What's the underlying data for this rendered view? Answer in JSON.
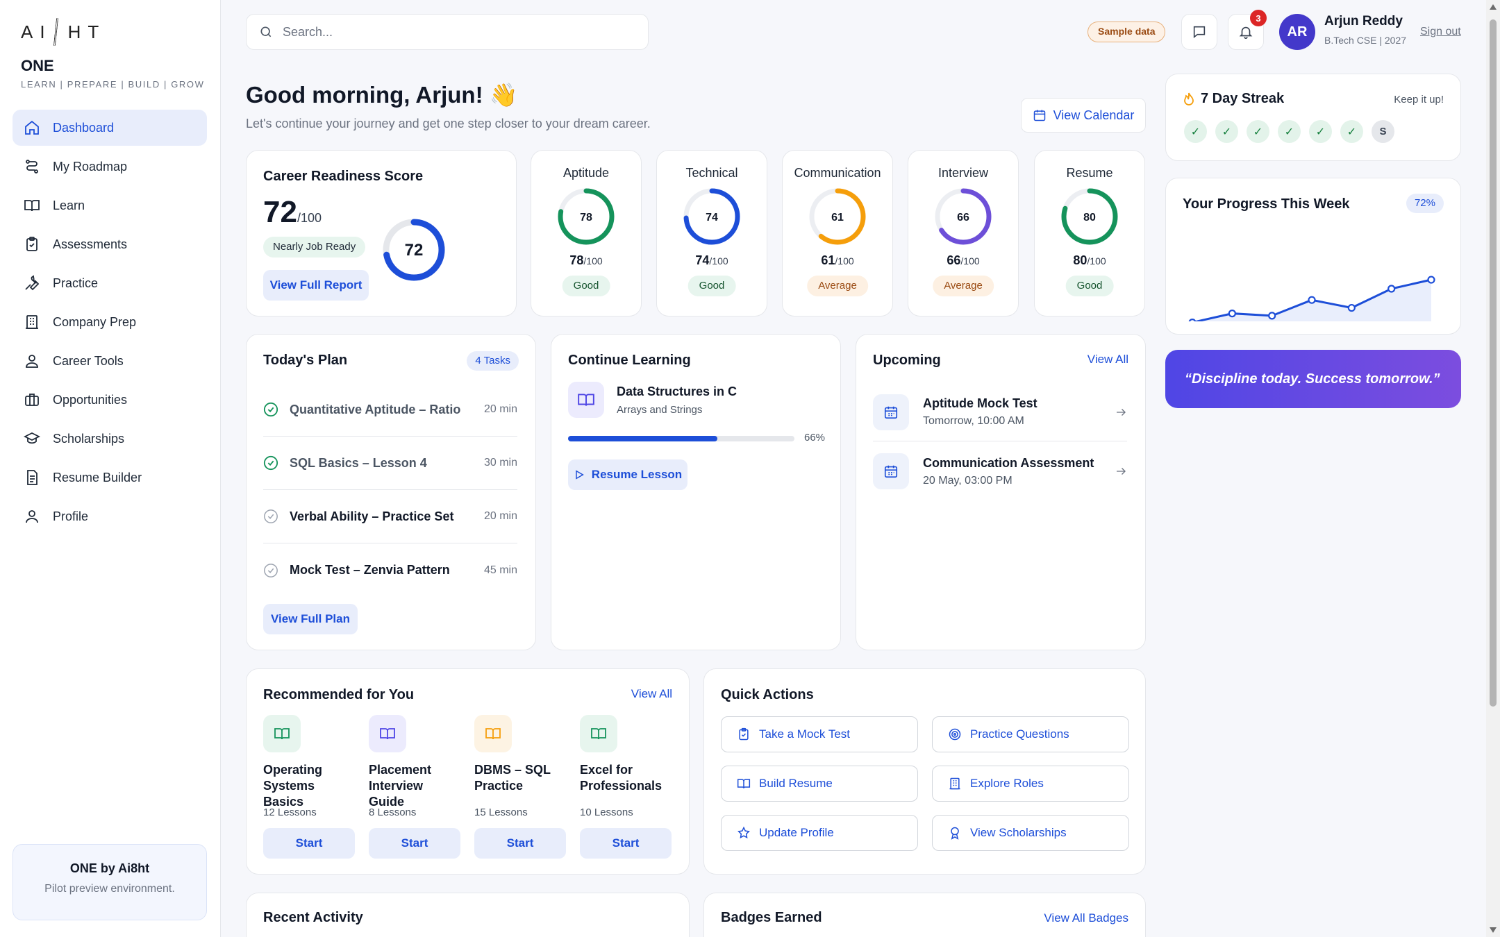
{
  "app": {
    "logo_left": "AI",
    "logo_right": "HT",
    "brand": "ONE",
    "tagline": "LEARN | PREPARE | BUILD | GROW"
  },
  "nav": [
    {
      "label": "Dashboard",
      "icon": "home-icon",
      "active": true
    },
    {
      "label": "My Roadmap",
      "icon": "route-icon"
    },
    {
      "label": "Learn",
      "icon": "book-icon"
    },
    {
      "label": "Assessments",
      "icon": "clipboard-icon"
    },
    {
      "label": "Practice",
      "icon": "wrench-icon"
    },
    {
      "label": "Company Prep",
      "icon": "building-icon"
    },
    {
      "label": "Career Tools",
      "icon": "user-badge-icon"
    },
    {
      "label": "Opportunities",
      "icon": "briefcase-icon"
    },
    {
      "label": "Scholarships",
      "icon": "graduation-cap-icon"
    },
    {
      "label": "Resume Builder",
      "icon": "document-icon"
    },
    {
      "label": "Profile",
      "icon": "user-icon"
    }
  ],
  "sidebar_footer": {
    "title": "ONE by Ai8ht",
    "subtitle": "Pilot preview environment."
  },
  "topbar": {
    "search_placeholder": "Search...",
    "sample_label": "Sample data",
    "notification_count": "3",
    "avatar_initials": "AR",
    "user_name": "Arjun Reddy",
    "user_meta": "B.Tech CSE | 2027",
    "signout_label": "Sign out"
  },
  "greeting": {
    "title": "Good morning, Arjun! 👋",
    "subtitle": "Let's continue your journey and get one step closer to your dream career.",
    "calendar_label": "View Calendar"
  },
  "readiness": {
    "title": "Career Readiness Score",
    "score": "72",
    "out_of": "/100",
    "status": "Nearly Job Ready",
    "ring_value": 72,
    "ring_label": "72",
    "report_label": "View Full Report"
  },
  "metrics": [
    {
      "name": "Aptitude",
      "value": 78,
      "label": "78",
      "total": "/100",
      "tag": "Good",
      "level": "good",
      "color": "#15935b"
    },
    {
      "name": "Technical",
      "value": 74,
      "label": "74",
      "total": "/100",
      "tag": "Good",
      "level": "good",
      "color": "#1d4ed8"
    },
    {
      "name": "Communication",
      "value": 61,
      "label": "61",
      "total": "/100",
      "tag": "Average",
      "level": "avg",
      "color": "#f59e0b"
    },
    {
      "name": "Interview",
      "value": 66,
      "label": "66",
      "total": "/100",
      "tag": "Average",
      "level": "avg",
      "color": "#6d4fd8"
    },
    {
      "name": "Resume",
      "value": 80,
      "label": "80",
      "total": "/100",
      "tag": "Good",
      "level": "good",
      "color": "#15935b"
    }
  ],
  "plan": {
    "title": "Today's Plan",
    "count_label": "4 Tasks",
    "items": [
      {
        "label": "Quantitative Aptitude – Ratio",
        "duration": "20 min",
        "done": true
      },
      {
        "label": "SQL Basics – Lesson 4",
        "duration": "30 min",
        "done": true
      },
      {
        "label": "Verbal Ability – Practice Set",
        "duration": "20 min",
        "done": false
      },
      {
        "label": "Mock Test – Zenvia Pattern",
        "duration": "45 min",
        "done": false
      }
    ],
    "button_label": "View Full Plan"
  },
  "learning": {
    "title": "Continue Learning",
    "course": "Data Structures in C",
    "topic": "Arrays and Strings",
    "progress": 0.66,
    "progress_label": "66%",
    "button_label": "Resume Lesson"
  },
  "upcoming": {
    "title": "Upcoming",
    "view_all": "View All",
    "items": [
      {
        "title": "Aptitude Mock Test",
        "when": "Tomorrow, 10:00 AM"
      },
      {
        "title": "Communication Assessment",
        "when": "20 May, 03:00 PM"
      }
    ]
  },
  "streak": {
    "title": "7 Day Streak",
    "note": "Keep it up!",
    "days": [
      "✓",
      "✓",
      "✓",
      "✓",
      "✓",
      "✓",
      "S"
    ]
  },
  "weekly": {
    "title": "Your Progress This Week",
    "percent_label": "72%"
  },
  "chart_data": {
    "type": "area",
    "values": [
      20,
      28,
      26,
      40,
      33,
      50,
      58
    ],
    "ylim": [
      0,
      100
    ],
    "color": "#1d4ed8"
  },
  "quote": "“Discipline today. Success tomorrow.”",
  "recommended": {
    "title": "Recommended for You",
    "view_all": "View All",
    "items": [
      {
        "name": "Operating Systems Basics",
        "lessons": "12 Lessons",
        "color": "#15935b",
        "bg": "#e7f5ee"
      },
      {
        "name": "Placement Interview Guide",
        "lessons": "8 Lessons",
        "color": "#4f46e5",
        "bg": "#ecebfd"
      },
      {
        "name": "DBMS – SQL Practice",
        "lessons": "15 Lessons",
        "color": "#f59e0b",
        "bg": "#fdf3e3"
      },
      {
        "name": "Excel for Professionals",
        "lessons": "10 Lessons",
        "color": "#15935b",
        "bg": "#e7f5ee"
      }
    ],
    "start_label": "Start"
  },
  "quick_actions": {
    "title": "Quick Actions",
    "items": [
      {
        "label": "Take a Mock Test",
        "icon": "clipboard-icon"
      },
      {
        "label": "Practice Questions",
        "icon": "target-icon"
      },
      {
        "label": "Build Resume",
        "icon": "book-icon"
      },
      {
        "label": "Explore Roles",
        "icon": "building-icon"
      },
      {
        "label": "Update Profile",
        "icon": "star-icon"
      },
      {
        "label": "View Scholarships",
        "icon": "award-icon"
      }
    ]
  },
  "recent": {
    "title": "Recent Activity"
  },
  "badges": {
    "title": "Badges Earned",
    "view_all": "View All Badges"
  }
}
